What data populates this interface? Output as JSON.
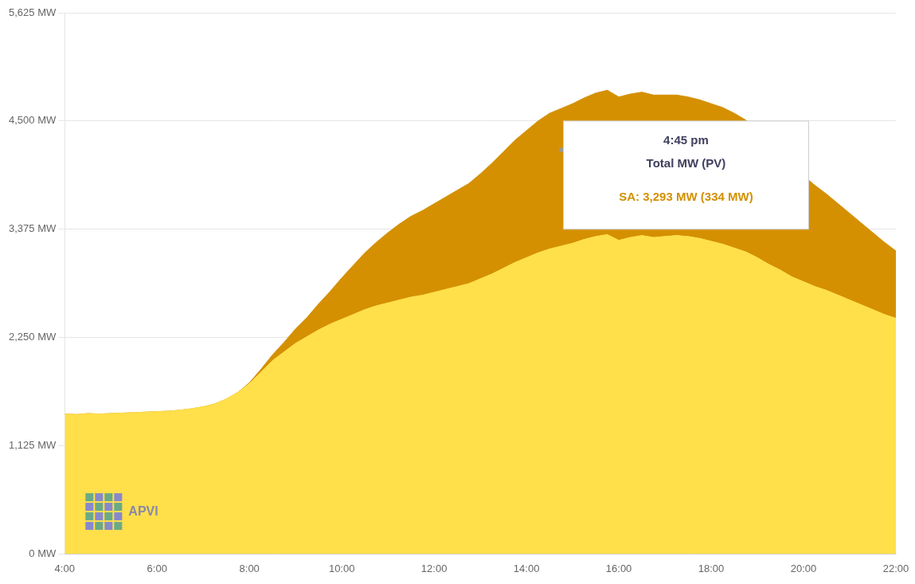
{
  "chart_data": {
    "type": "area",
    "stacked": true,
    "grid": "y",
    "x": [
      4.0,
      4.25,
      4.5,
      4.75,
      5.0,
      5.25,
      5.5,
      5.75,
      6.0,
      6.25,
      6.5,
      6.75,
      7.0,
      7.25,
      7.5,
      7.75,
      8.0,
      8.25,
      8.5,
      8.75,
      9.0,
      9.25,
      9.5,
      9.75,
      10.0,
      10.25,
      10.5,
      10.75,
      11.0,
      11.25,
      11.5,
      11.75,
      12.0,
      12.25,
      12.5,
      12.75,
      13.0,
      13.25,
      13.5,
      13.75,
      14.0,
      14.25,
      14.5,
      14.75,
      15.0,
      15.25,
      15.5,
      15.75,
      16.0,
      16.25,
      16.5,
      16.75,
      17.0,
      17.25,
      17.5,
      17.75,
      18.0,
      18.25,
      18.5,
      18.75,
      19.0,
      19.25,
      19.5,
      19.75,
      20.0,
      20.25,
      20.5,
      20.75,
      21.0,
      21.25,
      21.5,
      21.75,
      22.0
    ],
    "series": [
      {
        "color": "#FFDF4A",
        "values": [
          1455,
          1450,
          1460,
          1455,
          1460,
          1465,
          1470,
          1475,
          1480,
          1485,
          1495,
          1510,
          1530,
          1560,
          1610,
          1680,
          1770,
          1890,
          2010,
          2100,
          2190,
          2260,
          2330,
          2390,
          2440,
          2490,
          2540,
          2580,
          2610,
          2640,
          2670,
          2690,
          2720,
          2750,
          2780,
          2810,
          2860,
          2910,
          2970,
          3030,
          3080,
          3130,
          3170,
          3200,
          3230,
          3270,
          3300,
          3320,
          3260,
          3290,
          3310,
          3290,
          3300,
          3310,
          3300,
          3280,
          3250,
          3220,
          3180,
          3140,
          3080,
          3010,
          2950,
          2880,
          2830,
          2780,
          2740,
          2690,
          2640,
          2590,
          2540,
          2490,
          2450
        ]
      },
      {
        "color": "#D49000",
        "values": [
          0,
          0,
          0,
          0,
          0,
          0,
          0,
          0,
          0,
          0,
          0,
          0,
          0,
          0,
          0,
          0,
          10,
          30,
          60,
          100,
          150,
          200,
          270,
          340,
          430,
          510,
          590,
          660,
          730,
          790,
          840,
          880,
          920,
          960,
          1000,
          1040,
          1090,
          1150,
          1210,
          1270,
          1320,
          1370,
          1410,
          1430,
          1450,
          1470,
          1490,
          1500,
          1490,
          1490,
          1490,
          1480,
          1470,
          1460,
          1450,
          1440,
          1430,
          1420,
          1400,
          1370,
          1330,
          1280,
          1220,
          1160,
          1100,
          1050,
          1000,
          950,
          900,
          850,
          800,
          750,
          700
        ]
      },
      {
        "type": "scatter",
        "color": "#999999",
        "x": [
          14.75
        ],
        "values": [
          4200
        ]
      }
    ],
    "xlim": [
      4.0,
      22.0
    ],
    "xticks": [
      {
        "value": 4,
        "label": "4:00"
      },
      {
        "value": 6,
        "label": "6:00"
      },
      {
        "value": 8,
        "label": "8:00"
      },
      {
        "value": 10,
        "label": "10:00"
      },
      {
        "value": 12,
        "label": "12:00"
      },
      {
        "value": 14,
        "label": "14:00"
      },
      {
        "value": 16,
        "label": "16:00"
      },
      {
        "value": 18,
        "label": "18:00"
      },
      {
        "value": 20,
        "label": "20:00"
      },
      {
        "value": 22,
        "label": "22:00"
      }
    ],
    "ylim": [
      0,
      5625
    ],
    "yticks": [
      {
        "value": 0,
        "label": "0 MW"
      },
      {
        "value": 1125,
        "label": "1,125 MW"
      },
      {
        "value": 2250,
        "label": "2,250 MW"
      },
      {
        "value": 3375,
        "label": "3,375 MW"
      },
      {
        "value": 4500,
        "label": "4,500 MW"
      },
      {
        "value": 5625,
        "label": "5,625 MW"
      }
    ],
    "annotations": [
      "4:45 pm",
      "Total MW (PV)",
      "SA: 3,293 MW (334 MW)",
      "APVI"
    ]
  }
}
